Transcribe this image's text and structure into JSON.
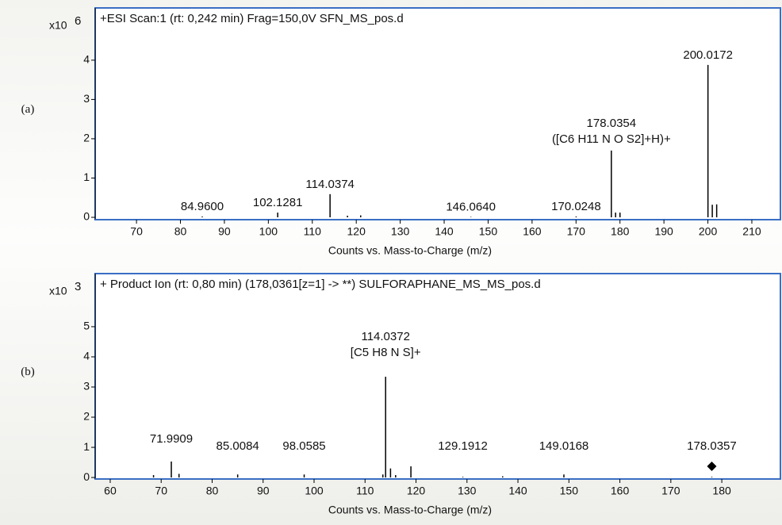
{
  "chart_data": [
    {
      "type": "stem",
      "tag": "(a)",
      "title": "+ESI Scan:1 (rt: 0,242 min) Frag=150,0V SFN_MS_pos.d",
      "y_multiplier": "x10",
      "y_exponent": "6",
      "x_label": "Counts vs. Mass-to-Charge (m/z)",
      "color": "#000000",
      "frame_color": "#3a6fc4",
      "xlim": [
        60.6,
        216.5
      ],
      "ylim": [
        -0.06,
        5.33
      ],
      "xticks": [
        70,
        80,
        90,
        100,
        110,
        120,
        130,
        140,
        150,
        160,
        170,
        180,
        190,
        200,
        210
      ],
      "yticks": [
        0,
        1,
        2,
        3,
        4
      ],
      "x": [
        84.96,
        102.1281,
        114.0374,
        118.0,
        121.0,
        146.064,
        170.0248,
        178.0354,
        179.0,
        180.0,
        200.0172,
        201.0,
        202.0
      ],
      "values": [
        0.02,
        0.12,
        0.59,
        0.04,
        0.05,
        0.01,
        0.02,
        1.7,
        0.12,
        0.12,
        3.88,
        0.32,
        0.33
      ],
      "peak_labels": [
        "84.9600",
        "102.1281",
        "114.0374",
        null,
        null,
        "146.0640",
        "170.0248",
        "178.0354",
        null,
        null,
        "200.0172",
        null,
        null
      ],
      "peak_formulas": [
        null,
        null,
        null,
        null,
        null,
        null,
        null,
        "([C6 H11 N O S2]+H)+",
        null,
        null,
        null,
        null,
        null
      ]
    },
    {
      "type": "stem",
      "tag": "(b)",
      "title": "+ Product Ion (rt: 0,80 min) (178,0361[z=1] -> **) SULFORAPHANE_MS_MS_pos.d",
      "y_multiplier": "x10",
      "y_exponent": "3",
      "x_label": "Counts vs. Mass-to-Charge (m/z)",
      "color": "#000000",
      "frame_color": "#3a6fc4",
      "xlim": [
        57.05,
        191.5
      ],
      "ylim": [
        -0.05,
        6.76
      ],
      "xticks": [
        60,
        70,
        80,
        90,
        100,
        110,
        120,
        130,
        140,
        150,
        160,
        170,
        180
      ],
      "yticks": [
        0,
        1,
        2,
        3,
        4,
        5
      ],
      "x": [
        68.5,
        71.9909,
        73.5,
        85.0084,
        98.0585,
        113.5,
        114.0372,
        115.0,
        116.0,
        119.0,
        129.1912,
        137.0,
        149.0168,
        178.0357
      ],
      "values": [
        0.08,
        0.53,
        0.12,
        0.1,
        0.1,
        0.1,
        3.34,
        0.3,
        0.08,
        0.37,
        0.02,
        0.04,
        0.1,
        0.02
      ],
      "peak_labels": [
        null,
        "71.9909",
        null,
        "85.0084",
        "98.0585",
        null,
        "114.0372",
        null,
        null,
        null,
        "129.1912",
        null,
        "149.0168",
        "178.0357"
      ],
      "peak_formulas": [
        null,
        null,
        null,
        null,
        null,
        null,
        "[C5 H8 N S]+",
        null,
        null,
        null,
        null,
        null,
        null,
        null
      ],
      "precursor_marker": {
        "x": 178.0357,
        "y": 0.37
      }
    }
  ]
}
